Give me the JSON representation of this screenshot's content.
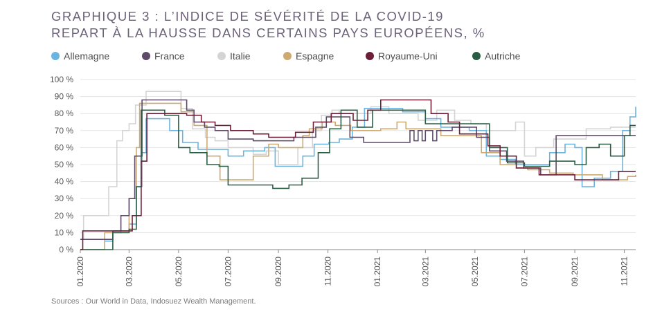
{
  "title": {
    "line1": "GRAPHIQUE 3 : L’INDICE DE SÉVÉRITÉ DE LA COVID-19",
    "line2": "REPART À LA HAUSSE DANS CERTAINS PAYS EUROPÉENS, %"
  },
  "source": "Sources : Our World in Data, Indosuez Wealth Management.",
  "colors": {
    "title": "#6b6179",
    "grid": "#e3e3e3"
  },
  "chart_data": {
    "type": "line",
    "title": "GRAPHIQUE 3 : L’INDICE DE SÉVÉRITÉ DE LA COVID-19 REPART À LA HAUSSE DANS CERTAINS PAYS EUROPÉENS, %",
    "xlabel": "",
    "ylabel": "",
    "ylim": [
      0,
      100
    ],
    "xlim": [
      "2020-01-01",
      "2021-11-15"
    ],
    "grid": "horizontal",
    "legend_position": "top",
    "y_ticks": [
      "0 %",
      "10 %",
      "20 %",
      "30 %",
      "40 %",
      "50 %",
      "60 %",
      "70 %",
      "80 %",
      "90 %",
      "100 %"
    ],
    "x_ticks": [
      {
        "date": "2020-01-01",
        "label": "01.2020"
      },
      {
        "date": "2020-03-01",
        "label": "03.2020"
      },
      {
        "date": "2020-05-01",
        "label": "05.2020"
      },
      {
        "date": "2020-07-01",
        "label": "07.2020"
      },
      {
        "date": "2020-09-01",
        "label": "09.2020"
      },
      {
        "date": "2020-11-01",
        "label": "11.2020"
      },
      {
        "date": "2021-01-01",
        "label": "01.2021"
      },
      {
        "date": "2021-03-01",
        "label": "03.2021"
      },
      {
        "date": "2021-05-01",
        "label": "05.2021"
      },
      {
        "date": "2021-07-01",
        "label": "07.2021"
      },
      {
        "date": "2021-09-01",
        "label": "09.2021"
      },
      {
        "date": "2021-11-01",
        "label": "11.2021"
      }
    ],
    "series": [
      {
        "name": "Allemagne",
        "color": "#6ab4e0",
        "points": [
          [
            "2020-01-01",
            0
          ],
          [
            "2020-01-31",
            5
          ],
          [
            "2020-02-10",
            11
          ],
          [
            "2020-03-01",
            15
          ],
          [
            "2020-03-10",
            37
          ],
          [
            "2020-03-17",
            57
          ],
          [
            "2020-03-22",
            77
          ],
          [
            "2020-04-13",
            77
          ],
          [
            "2020-04-20",
            70
          ],
          [
            "2020-05-06",
            63
          ],
          [
            "2020-05-25",
            59
          ],
          [
            "2020-06-15",
            59
          ],
          [
            "2020-07-01",
            55
          ],
          [
            "2020-07-20",
            58
          ],
          [
            "2020-08-15",
            60
          ],
          [
            "2020-08-28",
            49
          ],
          [
            "2020-09-15",
            49
          ],
          [
            "2020-10-01",
            55
          ],
          [
            "2020-10-15",
            62
          ],
          [
            "2020-11-02",
            63
          ],
          [
            "2020-11-15",
            65
          ],
          [
            "2020-12-01",
            72
          ],
          [
            "2020-12-16",
            83
          ],
          [
            "2021-01-10",
            83
          ],
          [
            "2021-02-01",
            81
          ],
          [
            "2021-03-01",
            77
          ],
          [
            "2021-03-20",
            72
          ],
          [
            "2021-04-24",
            70
          ],
          [
            "2021-05-15",
            55
          ],
          [
            "2021-06-01",
            53
          ],
          [
            "2021-06-20",
            50
          ],
          [
            "2021-07-15",
            50
          ],
          [
            "2021-08-01",
            57
          ],
          [
            "2021-08-20",
            62
          ],
          [
            "2021-09-01",
            60
          ],
          [
            "2021-09-10",
            37
          ],
          [
            "2021-09-25",
            42
          ],
          [
            "2021-10-15",
            46
          ],
          [
            "2021-10-30",
            70
          ],
          [
            "2021-11-08",
            78
          ],
          [
            "2021-11-15",
            84
          ]
        ]
      },
      {
        "name": "France",
        "color": "#5d4a68",
        "points": [
          [
            "2020-01-01",
            6
          ],
          [
            "2020-02-10",
            11
          ],
          [
            "2020-02-20",
            20
          ],
          [
            "2020-03-01",
            30
          ],
          [
            "2020-03-08",
            55
          ],
          [
            "2020-03-17",
            88
          ],
          [
            "2020-05-11",
            82
          ],
          [
            "2020-05-20",
            75
          ],
          [
            "2020-06-02",
            72
          ],
          [
            "2020-06-15",
            70
          ],
          [
            "2020-07-01",
            65
          ],
          [
            "2020-08-01",
            64
          ],
          [
            "2020-09-01",
            64
          ],
          [
            "2020-09-20",
            66
          ],
          [
            "2020-10-17",
            72
          ],
          [
            "2020-10-30",
            78
          ],
          [
            "2020-11-15",
            78
          ],
          [
            "2020-11-28",
            66
          ],
          [
            "2020-12-15",
            63
          ],
          [
            "2021-01-15",
            63
          ],
          [
            "2021-02-01",
            63
          ],
          [
            "2021-02-10",
            70
          ],
          [
            "2021-02-15",
            64
          ],
          [
            "2021-02-20",
            70
          ],
          [
            "2021-02-25",
            64
          ],
          [
            "2021-03-01",
            70
          ],
          [
            "2021-03-10",
            64
          ],
          [
            "2021-03-15",
            70
          ],
          [
            "2021-04-03",
            72
          ],
          [
            "2021-05-03",
            66
          ],
          [
            "2021-05-19",
            58
          ],
          [
            "2021-06-09",
            52
          ],
          [
            "2021-06-30",
            48
          ],
          [
            "2021-07-21",
            44
          ],
          [
            "2021-08-09",
            67
          ],
          [
            "2021-08-20",
            67
          ],
          [
            "2021-09-30",
            67
          ],
          [
            "2021-11-15",
            67
          ]
        ]
      },
      {
        "name": "Italie",
        "color": "#d4d4d4",
        "points": [
          [
            "2020-01-01",
            6
          ],
          [
            "2020-01-05",
            20
          ],
          [
            "2020-01-31",
            20
          ],
          [
            "2020-02-05",
            37
          ],
          [
            "2020-02-15",
            64
          ],
          [
            "2020-02-22",
            70
          ],
          [
            "2020-03-01",
            74
          ],
          [
            "2020-03-09",
            85
          ],
          [
            "2020-03-22",
            93
          ],
          [
            "2020-05-04",
            83
          ],
          [
            "2020-05-18",
            71
          ],
          [
            "2020-06-03",
            66
          ],
          [
            "2020-06-15",
            64
          ],
          [
            "2020-07-01",
            60
          ],
          [
            "2020-08-01",
            56
          ],
          [
            "2020-08-17",
            58
          ],
          [
            "2020-09-01",
            50
          ],
          [
            "2020-09-25",
            60
          ],
          [
            "2020-10-13",
            70
          ],
          [
            "2020-10-24",
            79
          ],
          [
            "2020-11-06",
            82
          ],
          [
            "2020-11-15",
            80
          ],
          [
            "2020-12-01",
            80
          ],
          [
            "2020-12-24",
            84
          ],
          [
            "2021-01-15",
            80
          ],
          [
            "2021-02-01",
            80
          ],
          [
            "2021-02-20",
            76
          ],
          [
            "2021-03-15",
            82
          ],
          [
            "2021-04-06",
            76
          ],
          [
            "2021-04-26",
            74
          ],
          [
            "2021-05-15",
            70
          ],
          [
            "2021-06-01",
            70
          ],
          [
            "2021-06-20",
            75
          ],
          [
            "2021-07-01",
            55
          ],
          [
            "2021-07-15",
            60
          ],
          [
            "2021-08-06",
            65
          ],
          [
            "2021-08-30",
            65
          ],
          [
            "2021-09-15",
            71
          ],
          [
            "2021-10-01",
            71
          ],
          [
            "2021-10-15",
            72
          ],
          [
            "2021-11-15",
            72
          ]
        ]
      },
      {
        "name": "Espagne",
        "color": "#cdaa72",
        "points": [
          [
            "2020-01-01",
            0
          ],
          [
            "2020-01-31",
            10
          ],
          [
            "2020-02-20",
            11
          ],
          [
            "2020-03-01",
            30
          ],
          [
            "2020-03-10",
            60
          ],
          [
            "2020-03-14",
            86
          ],
          [
            "2020-04-30",
            86
          ],
          [
            "2020-05-04",
            81
          ],
          [
            "2020-05-20",
            73
          ],
          [
            "2020-06-05",
            55
          ],
          [
            "2020-06-21",
            41
          ],
          [
            "2020-07-15",
            41
          ],
          [
            "2020-08-01",
            55
          ],
          [
            "2020-08-20",
            62
          ],
          [
            "2020-09-01",
            60
          ],
          [
            "2020-09-20",
            60
          ],
          [
            "2020-10-01",
            67
          ],
          [
            "2020-10-09",
            71
          ],
          [
            "2020-10-25",
            75
          ],
          [
            "2020-11-10",
            73
          ],
          [
            "2020-11-29",
            70
          ],
          [
            "2020-12-15",
            70
          ],
          [
            "2021-01-05",
            71
          ],
          [
            "2021-01-25",
            75
          ],
          [
            "2021-02-05",
            71
          ],
          [
            "2021-03-01",
            71
          ],
          [
            "2021-03-20",
            67
          ],
          [
            "2021-04-15",
            67
          ],
          [
            "2021-05-09",
            57
          ],
          [
            "2021-06-01",
            50
          ],
          [
            "2021-06-21",
            48
          ],
          [
            "2021-07-05",
            47
          ],
          [
            "2021-08-01",
            45
          ],
          [
            "2021-08-30",
            44
          ],
          [
            "2021-09-20",
            44
          ],
          [
            "2021-10-05",
            41
          ],
          [
            "2021-10-25",
            41
          ],
          [
            "2021-11-05",
            43
          ],
          [
            "2021-11-15",
            44
          ]
        ]
      },
      {
        "name": "Royaume-Uni",
        "color": "#6d1f37",
        "points": [
          [
            "2020-01-01",
            0
          ],
          [
            "2020-01-04",
            11
          ],
          [
            "2020-02-20",
            11
          ],
          [
            "2020-03-05",
            20
          ],
          [
            "2020-03-16",
            52
          ],
          [
            "2020-03-23",
            80
          ],
          [
            "2020-05-11",
            79
          ],
          [
            "2020-05-29",
            75
          ],
          [
            "2020-06-15",
            73
          ],
          [
            "2020-07-04",
            70
          ],
          [
            "2020-08-01",
            68
          ],
          [
            "2020-08-20",
            66
          ],
          [
            "2020-09-01",
            66
          ],
          [
            "2020-09-22",
            69
          ],
          [
            "2020-10-14",
            75
          ],
          [
            "2020-11-05",
            80
          ],
          [
            "2020-11-20",
            80
          ],
          [
            "2020-12-02",
            76
          ],
          [
            "2020-12-20",
            82
          ],
          [
            "2021-01-05",
            88
          ],
          [
            "2021-02-15",
            88
          ],
          [
            "2021-03-08",
            80
          ],
          [
            "2021-03-29",
            75
          ],
          [
            "2021-04-12",
            68
          ],
          [
            "2021-05-17",
            61
          ],
          [
            "2021-06-01",
            55
          ],
          [
            "2021-06-21",
            48
          ],
          [
            "2021-07-19",
            44
          ],
          [
            "2021-08-20",
            44
          ],
          [
            "2021-09-01",
            41
          ],
          [
            "2021-10-01",
            41
          ],
          [
            "2021-10-25",
            46
          ],
          [
            "2021-11-15",
            46
          ]
        ]
      },
      {
        "name": "Autriche",
        "color": "#2a5e44",
        "points": [
          [
            "2020-01-01",
            0
          ],
          [
            "2020-02-05",
            0
          ],
          [
            "2020-02-10",
            10
          ],
          [
            "2020-03-01",
            12
          ],
          [
            "2020-03-10",
            37
          ],
          [
            "2020-03-16",
            82
          ],
          [
            "2020-04-14",
            79
          ],
          [
            "2020-05-01",
            60
          ],
          [
            "2020-05-15",
            57
          ],
          [
            "2020-06-05",
            50
          ],
          [
            "2020-06-20",
            49
          ],
          [
            "2020-07-01",
            38
          ],
          [
            "2020-08-01",
            38
          ],
          [
            "2020-08-25",
            36
          ],
          [
            "2020-09-14",
            38
          ],
          [
            "2020-09-30",
            42
          ],
          [
            "2020-10-20",
            57
          ],
          [
            "2020-11-03",
            71
          ],
          [
            "2020-11-17",
            82
          ],
          [
            "2020-12-07",
            72
          ],
          [
            "2020-12-26",
            82
          ],
          [
            "2021-02-08",
            82
          ],
          [
            "2021-03-01",
            74
          ],
          [
            "2021-04-01",
            74
          ],
          [
            "2021-05-19",
            60
          ],
          [
            "2021-06-10",
            51
          ],
          [
            "2021-07-01",
            49
          ],
          [
            "2021-08-01",
            52
          ],
          [
            "2021-09-01",
            50
          ],
          [
            "2021-09-15",
            60
          ],
          [
            "2021-10-01",
            62
          ],
          [
            "2021-10-15",
            55
          ],
          [
            "2021-11-01",
            67
          ],
          [
            "2021-11-08",
            73
          ],
          [
            "2021-11-15",
            73
          ]
        ]
      }
    ]
  }
}
